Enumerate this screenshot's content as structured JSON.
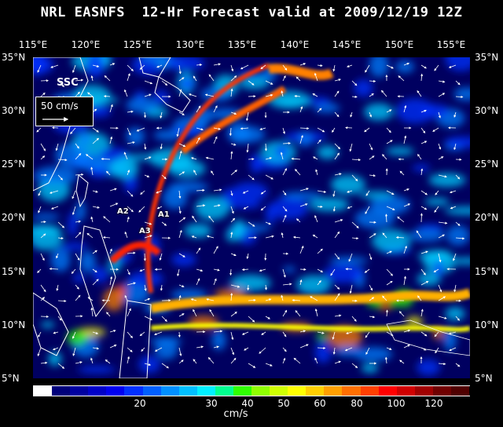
{
  "title": "NRL EASNFS  12-Hr Forecast valid at 2009/12/19 12Z",
  "lon_labels": [
    "115°E",
    "120°E",
    "125°E",
    "130°E",
    "135°E",
    "140°E",
    "145°E",
    "150°E",
    "155°E"
  ],
  "lat_labels": [
    "35°N",
    "30°N",
    "25°N",
    "20°N",
    "15°N",
    "10°N",
    "5°N"
  ],
  "field_label": "SSC",
  "vector_scale_label": "50 cm/s",
  "annotations": [
    "A1",
    "A2",
    "A3"
  ],
  "colorbar": {
    "labels": [
      "20",
      "30",
      "40",
      "50",
      "60",
      "80",
      "100",
      "120"
    ],
    "units": "cm/s",
    "colors": [
      "#ffffff",
      "#00007a",
      "#0000a0",
      "#0000c8",
      "#0000f0",
      "#0030ff",
      "#0060ff",
      "#0090ff",
      "#00c0ff",
      "#00f0ff",
      "#00ff90",
      "#30ff00",
      "#90ff00",
      "#d0ff00",
      "#ffff00",
      "#ffd000",
      "#ffa000",
      "#ff7000",
      "#ff4000",
      "#ff0000",
      "#d00000",
      "#a00000",
      "#700000",
      "#500000"
    ]
  },
  "map": {
    "ocean_colors": {
      "low": "#00005a",
      "mid": "#0040ff",
      "high": "#ff2000"
    },
    "land_color": "#ffffff"
  }
}
